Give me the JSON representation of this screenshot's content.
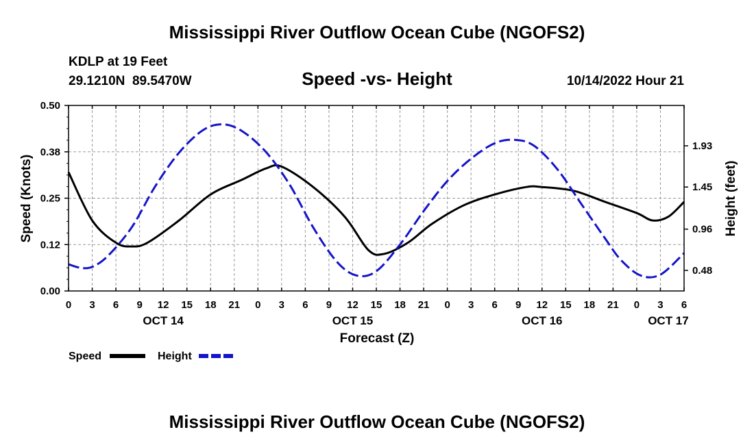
{
  "chart_data": {
    "type": "line",
    "title": "Mississippi River Outflow Ocean Cube (NGOFS2)",
    "footer_title": "Mississippi River Outflow Ocean Cube (NGOFS2)",
    "station_line": "KDLP at 19 Feet",
    "coords_line": "29.1210N  89.5470W",
    "subtitle": "Speed -vs- Height",
    "datetime": "10/14/2022 Hour 21",
    "xlabel": "Forecast (Z)",
    "ylabel_left": "Speed (Knots)",
    "ylabel_right": "Height (feet)",
    "x_range_hours": [
      0,
      78
    ],
    "x_ticks": [
      {
        "h": 0,
        "label": "0"
      },
      {
        "h": 3,
        "label": "3"
      },
      {
        "h": 6,
        "label": "6"
      },
      {
        "h": 9,
        "label": "9"
      },
      {
        "h": 12,
        "label": "12"
      },
      {
        "h": 15,
        "label": "15"
      },
      {
        "h": 18,
        "label": "18"
      },
      {
        "h": 21,
        "label": "21"
      },
      {
        "h": 24,
        "label": "0"
      },
      {
        "h": 27,
        "label": "3"
      },
      {
        "h": 30,
        "label": "6"
      },
      {
        "h": 33,
        "label": "9"
      },
      {
        "h": 36,
        "label": "12"
      },
      {
        "h": 39,
        "label": "15"
      },
      {
        "h": 42,
        "label": "18"
      },
      {
        "h": 45,
        "label": "21"
      },
      {
        "h": 48,
        "label": "0"
      },
      {
        "h": 51,
        "label": "3"
      },
      {
        "h": 54,
        "label": "6"
      },
      {
        "h": 57,
        "label": "9"
      },
      {
        "h": 60,
        "label": "12"
      },
      {
        "h": 63,
        "label": "15"
      },
      {
        "h": 66,
        "label": "18"
      },
      {
        "h": 69,
        "label": "21"
      },
      {
        "h": 72,
        "label": "0"
      },
      {
        "h": 75,
        "label": "3"
      },
      {
        "h": 78,
        "label": "6"
      }
    ],
    "day_labels": [
      {
        "h": 12,
        "label": "OCT 14"
      },
      {
        "h": 36,
        "label": "OCT 15"
      },
      {
        "h": 60,
        "label": "OCT 16"
      },
      {
        "h": 76,
        "label": "OCT 17"
      }
    ],
    "left_axis": {
      "ylim": [
        0,
        0.5
      ],
      "ticks": [
        "0.00",
        "0.12",
        "0.25",
        "0.38",
        "0.50"
      ]
    },
    "right_axis": {
      "ylim": [
        0.24,
        2.4
      ],
      "ticks": [
        0.48,
        0.96,
        1.45,
        1.93
      ]
    },
    "series": [
      {
        "name": "Speed",
        "axis": "left",
        "color": "#000000",
        "dash": "solid",
        "x": [
          0,
          3,
          6,
          8,
          10,
          14,
          18,
          22,
          25,
          27,
          31,
          35,
          38,
          40,
          43,
          46,
          50,
          54,
          58,
          60,
          64,
          68,
          72,
          74,
          76,
          78
        ],
        "values": [
          0.32,
          0.19,
          0.13,
          0.12,
          0.13,
          0.19,
          0.26,
          0.3,
          0.33,
          0.335,
          0.28,
          0.2,
          0.11,
          0.1,
          0.13,
          0.18,
          0.23,
          0.26,
          0.28,
          0.28,
          0.27,
          0.24,
          0.21,
          0.19,
          0.2,
          0.24
        ]
      },
      {
        "name": "Height",
        "axis": "right",
        "color": "#1414c8",
        "dash": "dashed",
        "x": [
          0,
          1.5,
          3,
          5,
          8,
          11,
          14,
          17,
          19.5,
          22,
          25,
          28,
          31,
          34,
          36.5,
          39,
          42,
          45,
          48,
          51,
          54,
          56.5,
          59,
          62,
          65,
          68,
          70,
          72.5,
          75,
          78
        ],
        "values": [
          0.55,
          0.51,
          0.52,
          0.65,
          0.98,
          1.46,
          1.85,
          2.11,
          2.18,
          2.1,
          1.86,
          1.48,
          0.98,
          0.58,
          0.42,
          0.47,
          0.78,
          1.17,
          1.52,
          1.78,
          1.96,
          2.0,
          1.93,
          1.65,
          1.25,
          0.85,
          0.6,
          0.42,
          0.43,
          0.68
        ]
      }
    ],
    "legend": {
      "placement": "bottom-left",
      "entries": [
        "Speed",
        "Height"
      ]
    }
  }
}
